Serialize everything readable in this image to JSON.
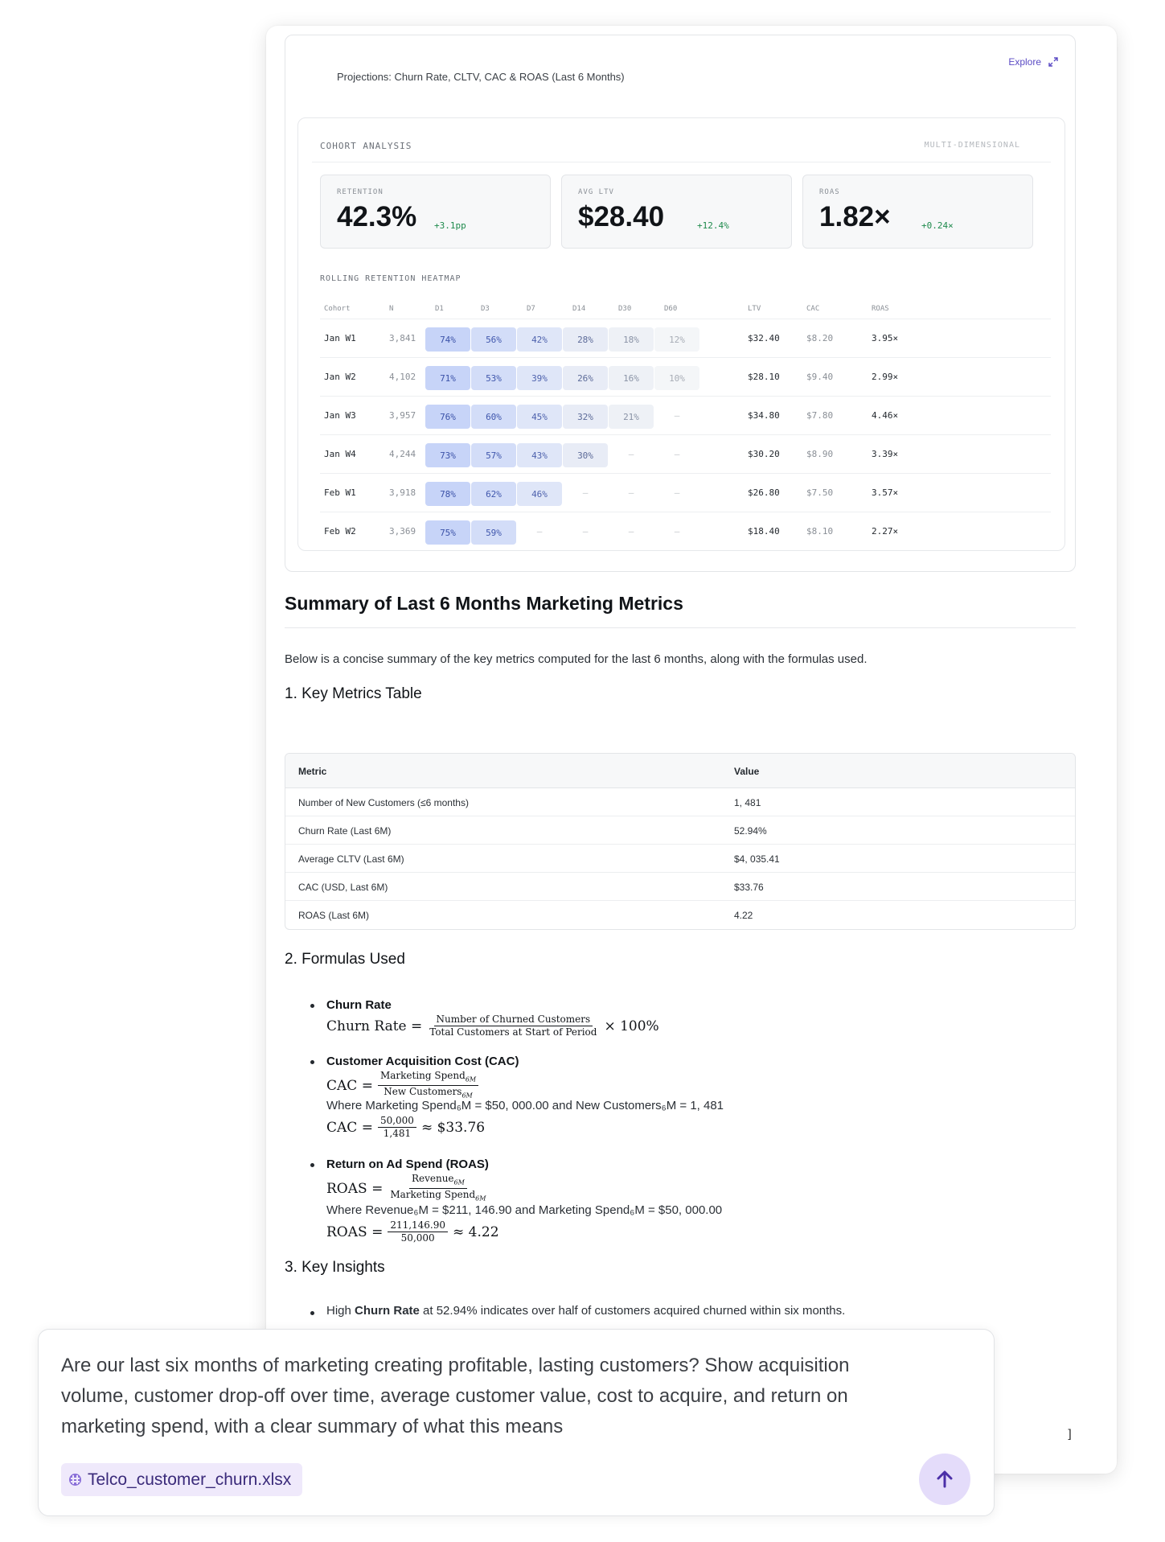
{
  "widget": {
    "title": "Projections: Churn Rate, CLTV, CAC & ROAS (Last 6 Months)",
    "explore_label": "Explore"
  },
  "cohort": {
    "title": "COHORT ANALYSIS",
    "tag": "MULTI-DIMENSIONAL",
    "kpis": [
      {
        "label": "RETENTION",
        "value": "42.3%",
        "delta": "+3.1pp"
      },
      {
        "label": "AVG LTV",
        "value": "$28.40",
        "delta": "+12.4%"
      },
      {
        "label": "ROAS",
        "value": "1.82×",
        "delta": "+0.24×"
      }
    ],
    "heatmap_title": "ROLLING RETENTION HEATMAP",
    "columns": [
      "Cohort",
      "N",
      "D1",
      "D3",
      "D7",
      "D14",
      "D30",
      "D60",
      "LTV",
      "CAC",
      "ROAS"
    ],
    "rows": [
      {
        "cohort": "Jan W1",
        "n": "3,841",
        "cells": [
          "74%",
          "56%",
          "42%",
          "28%",
          "18%",
          "12%"
        ],
        "ltv": "$32.40",
        "cac": "$8.20",
        "roas": "3.95×"
      },
      {
        "cohort": "Jan W2",
        "n": "4,102",
        "cells": [
          "71%",
          "53%",
          "39%",
          "26%",
          "16%",
          "10%"
        ],
        "ltv": "$28.10",
        "cac": "$9.40",
        "roas": "2.99×"
      },
      {
        "cohort": "Jan W3",
        "n": "3,957",
        "cells": [
          "76%",
          "60%",
          "45%",
          "32%",
          "21%",
          "—"
        ],
        "ltv": "$34.80",
        "cac": "$7.80",
        "roas": "4.46×"
      },
      {
        "cohort": "Jan W4",
        "n": "4,244",
        "cells": [
          "73%",
          "57%",
          "43%",
          "30%",
          "—",
          "—"
        ],
        "ltv": "$30.20",
        "cac": "$8.90",
        "roas": "3.39×"
      },
      {
        "cohort": "Feb W1",
        "n": "3,918",
        "cells": [
          "78%",
          "62%",
          "46%",
          "—",
          "—",
          "—"
        ],
        "ltv": "$26.80",
        "cac": "$7.50",
        "roas": "3.57×"
      },
      {
        "cohort": "Feb W2",
        "n": "3,369",
        "cells": [
          "75%",
          "59%",
          "—",
          "—",
          "—",
          "—"
        ],
        "ltv": "$18.40",
        "cac": "$8.10",
        "roas": "2.27×"
      }
    ],
    "colors": {
      "d1": "#c7d4f8",
      "d3": "#d3ddf8",
      "d7": "#dfe6f8",
      "d14": "#e8ecf6",
      "d30": "#eef1f6",
      "d60": "#f4f6f8"
    }
  },
  "summary": {
    "title": "Summary of Last 6 Months Marketing Metrics",
    "intro": "Below is a concise summary of the key metrics computed for the last 6 months, along with the formulas used.",
    "section1": "1. Key Metrics Table",
    "table": {
      "headers": [
        "Metric",
        "Value"
      ],
      "rows": [
        [
          "Number of New Customers (≤6 months)",
          "1, 481"
        ],
        [
          "Churn Rate (Last 6M)",
          "52.94%"
        ],
        [
          "Average CLTV (Last 6M)",
          "$4, 035.41"
        ],
        [
          "CAC (USD, Last 6M)",
          "$33.76"
        ],
        [
          "ROAS (Last 6M)",
          "4.22"
        ]
      ]
    },
    "section2": "2. Formulas Used",
    "formulas": {
      "churn": {
        "title": "Churn Rate",
        "lhs": "Churn Rate =",
        "num": "Number of Churned Customers",
        "den": "Total Customers at Start of Period",
        "tail": "× 100%"
      },
      "cac": {
        "title": "Customer Acquisition Cost (CAC)",
        "lhs": "CAC =",
        "num": "Marketing Spend",
        "num_sub": "6M",
        "den": "New Customers",
        "den_sub": "6M",
        "where": "Where Marketing Spend₆M = $50, 000.00 and New Customers₆M = 1, 481",
        "calc_lhs": "CAC =",
        "calc_num": "50,000",
        "calc_den": "1,481",
        "calc_tail": "≈ $33.76"
      },
      "roas": {
        "title": "Return on Ad Spend (ROAS)",
        "lhs": "ROAS =",
        "num": "Revenue",
        "num_sub": "6M",
        "den": "Marketing Spend",
        "den_sub": "6M",
        "where": "Where Revenue₆M = $211, 146.90 and Marketing Spend₆M = $50, 000.00",
        "calc_lhs": "ROAS =",
        "calc_num": "211,146.90",
        "calc_den": "50,000",
        "calc_tail": "≈ 4.22"
      }
    },
    "section3": "3. Key Insights",
    "insight_prefix": "High ",
    "insight_bold": "Churn Rate",
    "insight_suffix": " at 52.94% indicates over half of customers acquired churned within six months."
  },
  "corner_glyph": "]",
  "chat": {
    "prompt": "Are our last six months of marketing creating profitable, lasting customers? Show acquisition volume, customer drop-off over time, average customer value, cost to acquire, and return on marketing spend, with a clear summary of what this means",
    "attachment": "Telco_customer_churn.xlsx",
    "send_icon": "arrow-up-icon"
  }
}
